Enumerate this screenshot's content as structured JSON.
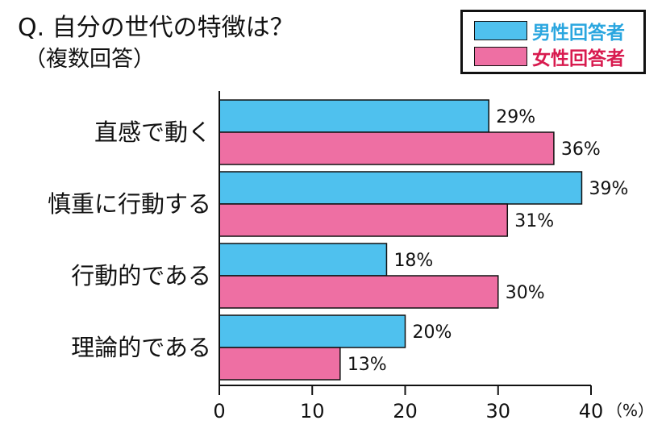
{
  "title": "Q. 自分の世代の特徴は？",
  "subtitle": "（複数回答）",
  "colors": {
    "male": "#4fc1ee",
    "female": "#ee6fa3",
    "male_text": "#2aa6df",
    "female_text": "#d81b4f"
  },
  "chart_data": {
    "type": "bar",
    "orientation": "horizontal",
    "categories": [
      "直感で動く",
      "慎重に行動する",
      "行動的である",
      "理論的である"
    ],
    "series": [
      {
        "name": "男性回答者",
        "values": [
          29,
          39,
          18,
          20
        ]
      },
      {
        "name": "女性回答者",
        "values": [
          36,
          31,
          30,
          13
        ]
      }
    ],
    "data_labels": [
      [
        "29%",
        "39%",
        "18%",
        "20%"
      ],
      [
        "36%",
        "31%",
        "30%",
        "13%"
      ]
    ],
    "xlim": [
      0,
      40
    ],
    "xticks": [
      "0",
      "10",
      "20",
      "30",
      "40"
    ],
    "xunit": "（%）",
    "legend": "top-right",
    "grid": false
  }
}
